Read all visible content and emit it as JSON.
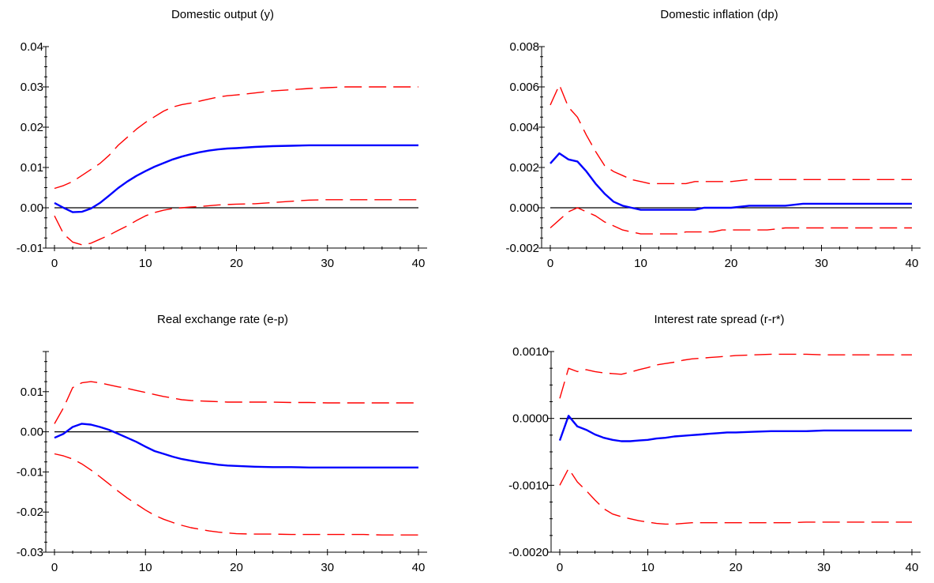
{
  "colors": {
    "irf": "#0000ff",
    "band": "#ff0000",
    "zero": "#000000",
    "axis": "#000000"
  },
  "chart_data": [
    {
      "type": "line",
      "title": "Domestic output (y)",
      "xlim": [
        0,
        40
      ],
      "ylim": [
        -0.01,
        0.04
      ],
      "xticks": [
        0,
        10,
        20,
        30,
        40
      ],
      "xtick_labels": [
        "0",
        "10",
        "20",
        "30",
        "40"
      ],
      "yticks": [
        -0.01,
        0,
        0.01,
        0.02,
        0.03,
        0.04
      ],
      "ytick_labels": [
        "-0.01",
        "0.00",
        "0.01",
        "0.02",
        "0.03",
        "0.04"
      ],
      "series": [
        {
          "style": "solid",
          "role": "irf",
          "x": [
            0,
            1,
            2,
            3,
            4,
            5,
            6,
            7,
            8,
            9,
            10,
            11,
            12,
            13,
            14,
            15,
            16,
            17,
            18,
            19,
            20,
            22,
            24,
            26,
            28,
            30,
            32,
            34,
            36,
            38,
            40
          ],
          "values": [
            0.0012,
            0.0,
            -0.0011,
            -0.001,
            -0.0002,
            0.0012,
            0.003,
            0.0049,
            0.0065,
            0.0079,
            0.0091,
            0.0102,
            0.0111,
            0.012,
            0.0127,
            0.0133,
            0.0138,
            0.0142,
            0.0145,
            0.0147,
            0.0148,
            0.0151,
            0.0153,
            0.0154,
            0.0155,
            0.0155,
            0.0155,
            0.0155,
            0.0155,
            0.0155,
            0.0155
          ]
        },
        {
          "style": "dashed",
          "role": "upper",
          "x": [
            0,
            1,
            2,
            3,
            4,
            5,
            6,
            7,
            8,
            9,
            10,
            11,
            12,
            13,
            14,
            15,
            16,
            17,
            18,
            19,
            20,
            22,
            24,
            26,
            28,
            30,
            32,
            34,
            36,
            38,
            40
          ],
          "values": [
            0.0048,
            0.0055,
            0.0065,
            0.008,
            0.0095,
            0.011,
            0.013,
            0.0155,
            0.0175,
            0.0195,
            0.0212,
            0.0226,
            0.024,
            0.025,
            0.0256,
            0.026,
            0.0265,
            0.027,
            0.0275,
            0.0278,
            0.028,
            0.0285,
            0.029,
            0.0293,
            0.0296,
            0.0298,
            0.03,
            0.03,
            0.03,
            0.03,
            0.03
          ]
        },
        {
          "style": "dashed",
          "role": "lower",
          "x": [
            0,
            1,
            2,
            3,
            4,
            5,
            6,
            7,
            8,
            9,
            10,
            11,
            12,
            13,
            14,
            15,
            16,
            17,
            18,
            19,
            20,
            22,
            24,
            26,
            28,
            30,
            32,
            34,
            36,
            38,
            40
          ],
          "values": [
            -0.002,
            -0.0065,
            -0.0085,
            -0.0092,
            -0.0088,
            -0.0078,
            -0.0068,
            -0.0056,
            -0.0045,
            -0.0032,
            -0.002,
            -0.0012,
            -0.0006,
            -0.0002,
            0.0,
            0.0002,
            0.0003,
            0.0005,
            0.0007,
            0.0008,
            0.0009,
            0.001,
            0.0013,
            0.0016,
            0.0019,
            0.002,
            0.002,
            0.002,
            0.002,
            0.002,
            0.002
          ]
        }
      ]
    },
    {
      "type": "line",
      "title": "Domestic inflation (dp)",
      "xlim": [
        0,
        40
      ],
      "ylim": [
        -0.002,
        0.008
      ],
      "xticks": [
        0,
        10,
        20,
        30,
        40
      ],
      "xtick_labels": [
        "0",
        "10",
        "20",
        "30",
        "40"
      ],
      "yticks": [
        -0.002,
        0,
        0.002,
        0.004,
        0.006,
        0.008
      ],
      "ytick_labels": [
        "-0.002",
        "0.000",
        "0.002",
        "0.004",
        "0.006",
        "0.008"
      ],
      "series": [
        {
          "style": "solid",
          "role": "irf",
          "x": [
            0,
            1,
            2,
            3,
            4,
            5,
            6,
            7,
            8,
            9,
            10,
            11,
            12,
            13,
            14,
            15,
            16,
            17,
            18,
            19,
            20,
            22,
            24,
            26,
            28,
            30,
            32,
            34,
            36,
            38,
            40
          ],
          "values": [
            0.0022,
            0.0027,
            0.0024,
            0.0023,
            0.0018,
            0.0012,
            0.0007,
            0.0003,
            0.0001,
            -0.0,
            -0.0001,
            -0.0001,
            -0.0001,
            -0.0001,
            -0.0001,
            -0.0001,
            -0.0001,
            -0.0,
            -0.0,
            0.0,
            0.0,
            0.0001,
            0.0001,
            0.0001,
            0.0002,
            0.0002,
            0.0002,
            0.0002,
            0.0002,
            0.0002,
            0.0002
          ]
        },
        {
          "style": "dashed",
          "role": "upper",
          "x": [
            0,
            1,
            2,
            3,
            4,
            5,
            6,
            7,
            8,
            9,
            10,
            11,
            12,
            13,
            14,
            15,
            16,
            17,
            18,
            19,
            20,
            22,
            24,
            26,
            28,
            30,
            32,
            34,
            36,
            38,
            40
          ],
          "values": [
            0.0051,
            0.0061,
            0.005,
            0.0045,
            0.0036,
            0.0028,
            0.0021,
            0.0018,
            0.0016,
            0.0014,
            0.0013,
            0.0012,
            0.0012,
            0.0012,
            0.0012,
            0.0012,
            0.0013,
            0.0013,
            0.0013,
            0.0013,
            0.0013,
            0.0014,
            0.0014,
            0.0014,
            0.0014,
            0.0014,
            0.0014,
            0.0014,
            0.0014,
            0.0014,
            0.0014
          ]
        },
        {
          "style": "dashed",
          "role": "lower",
          "x": [
            0,
            1,
            2,
            3,
            4,
            5,
            6,
            7,
            8,
            9,
            10,
            11,
            12,
            13,
            14,
            15,
            16,
            17,
            18,
            19,
            20,
            22,
            24,
            26,
            28,
            30,
            32,
            34,
            36,
            38,
            40
          ],
          "values": [
            -0.001,
            -0.0006,
            -0.0002,
            0.0,
            -0.0002,
            -0.0004,
            -0.0007,
            -0.0009,
            -0.0011,
            -0.0012,
            -0.0013,
            -0.0013,
            -0.0013,
            -0.0013,
            -0.0013,
            -0.0012,
            -0.0012,
            -0.0012,
            -0.0012,
            -0.0011,
            -0.0011,
            -0.0011,
            -0.0011,
            -0.001,
            -0.001,
            -0.001,
            -0.001,
            -0.001,
            -0.001,
            -0.001,
            -0.001
          ]
        }
      ]
    },
    {
      "type": "line",
      "title": "Real exchange rate (e-p)",
      "xlim": [
        0,
        40
      ],
      "ylim": [
        -0.03,
        0.02
      ],
      "xticks": [
        0,
        10,
        20,
        30,
        40
      ],
      "xtick_labels": [
        "0",
        "10",
        "20",
        "30",
        "40"
      ],
      "yticks": [
        -0.03,
        -0.02,
        -0.01,
        0,
        0.01,
        0.02
      ],
      "ytick_labels": [
        "-0.03",
        "-0.02",
        "-0.01",
        "0.00",
        "0.01",
        ""
      ],
      "series": [
        {
          "style": "solid",
          "role": "irf",
          "x": [
            0,
            1,
            2,
            3,
            4,
            5,
            6,
            7,
            8,
            9,
            10,
            11,
            12,
            13,
            14,
            15,
            16,
            17,
            18,
            19,
            20,
            22,
            24,
            26,
            28,
            30,
            32,
            34,
            36,
            38,
            40
          ],
          "values": [
            -0.0015,
            -0.0005,
            0.0012,
            0.002,
            0.0018,
            0.0012,
            0.0005,
            -0.0005,
            -0.0015,
            -0.0025,
            -0.0037,
            -0.0048,
            -0.0055,
            -0.0062,
            -0.0068,
            -0.0072,
            -0.0076,
            -0.0079,
            -0.0082,
            -0.0084,
            -0.0085,
            -0.0087,
            -0.0088,
            -0.0088,
            -0.0089,
            -0.0089,
            -0.0089,
            -0.0089,
            -0.0089,
            -0.0089,
            -0.0089
          ]
        },
        {
          "style": "dashed",
          "role": "upper",
          "x": [
            0,
            1,
            2,
            3,
            4,
            5,
            6,
            7,
            8,
            9,
            10,
            11,
            12,
            13,
            14,
            15,
            16,
            17,
            18,
            19,
            20,
            22,
            24,
            26,
            28,
            30,
            32,
            34,
            36,
            38,
            40
          ],
          "values": [
            0.002,
            0.006,
            0.011,
            0.0122,
            0.0125,
            0.0122,
            0.0117,
            0.0112,
            0.0108,
            0.0103,
            0.0098,
            0.0093,
            0.0088,
            0.0084,
            0.008,
            0.0078,
            0.0077,
            0.0076,
            0.0075,
            0.0074,
            0.0074,
            0.0074,
            0.0074,
            0.0073,
            0.0073,
            0.0072,
            0.0072,
            0.0072,
            0.0072,
            0.0072,
            0.0072
          ]
        },
        {
          "style": "dashed",
          "role": "lower",
          "x": [
            0,
            1,
            2,
            3,
            4,
            5,
            6,
            7,
            8,
            9,
            10,
            11,
            12,
            13,
            14,
            15,
            16,
            17,
            18,
            19,
            20,
            22,
            24,
            26,
            28,
            30,
            32,
            34,
            36,
            38,
            40
          ],
          "values": [
            -0.0055,
            -0.006,
            -0.0068,
            -0.008,
            -0.0095,
            -0.0112,
            -0.013,
            -0.0148,
            -0.0165,
            -0.018,
            -0.0195,
            -0.0208,
            -0.0218,
            -0.0226,
            -0.0233,
            -0.0239,
            -0.0243,
            -0.0247,
            -0.025,
            -0.0252,
            -0.0254,
            -0.0255,
            -0.0255,
            -0.0256,
            -0.0256,
            -0.0256,
            -0.0256,
            -0.0256,
            -0.0257,
            -0.0257,
            -0.0257
          ]
        }
      ]
    },
    {
      "type": "line",
      "title": "Interest rate spread (r-r*)",
      "xlim": [
        0,
        40
      ],
      "ylim": [
        -0.002,
        0.001
      ],
      "xticks": [
        0,
        10,
        20,
        30,
        40
      ],
      "xtick_labels": [
        "0",
        "10",
        "20",
        "30",
        "40"
      ],
      "yticks": [
        -0.002,
        -0.001,
        0,
        0.001
      ],
      "ytick_labels": [
        "-0.0020",
        "-0.0010",
        "0.0000",
        "0.0010"
      ],
      "series": [
        {
          "style": "solid",
          "role": "irf",
          "x": [
            0,
            1,
            2,
            3,
            4,
            5,
            6,
            7,
            8,
            9,
            10,
            11,
            12,
            13,
            14,
            15,
            16,
            17,
            18,
            19,
            20,
            22,
            24,
            26,
            28,
            30,
            32,
            34,
            36,
            38,
            40
          ],
          "values": [
            -0.00033,
            4e-05,
            -0.00012,
            -0.00017,
            -0.00024,
            -0.00029,
            -0.00032,
            -0.00034,
            -0.00034,
            -0.00033,
            -0.00032,
            -0.0003,
            -0.00029,
            -0.00027,
            -0.00026,
            -0.00025,
            -0.00024,
            -0.00023,
            -0.00022,
            -0.00021,
            -0.00021,
            -0.0002,
            -0.00019,
            -0.00019,
            -0.00019,
            -0.00018,
            -0.00018,
            -0.00018,
            -0.00018,
            -0.00018,
            -0.00018
          ]
        },
        {
          "style": "dashed",
          "role": "upper",
          "x": [
            0,
            1,
            2,
            3,
            4,
            5,
            6,
            7,
            8,
            9,
            10,
            11,
            12,
            13,
            14,
            15,
            16,
            17,
            18,
            19,
            20,
            22,
            24,
            26,
            28,
            30,
            32,
            34,
            36,
            38,
            40
          ],
          "values": [
            0.0003,
            0.00075,
            0.0007,
            0.00073,
            0.0007,
            0.00068,
            0.00067,
            0.00066,
            0.00069,
            0.00073,
            0.00076,
            0.0008,
            0.00082,
            0.00084,
            0.00087,
            0.00089,
            0.0009,
            0.00091,
            0.00092,
            0.00093,
            0.00094,
            0.00095,
            0.00096,
            0.00096,
            0.00096,
            0.00095,
            0.00095,
            0.00095,
            0.00095,
            0.00095,
            0.00095
          ]
        },
        {
          "style": "dashed",
          "role": "lower",
          "x": [
            0,
            1,
            2,
            3,
            4,
            5,
            6,
            7,
            8,
            9,
            10,
            11,
            12,
            13,
            14,
            15,
            16,
            17,
            18,
            19,
            20,
            22,
            24,
            26,
            28,
            30,
            32,
            34,
            36,
            38,
            40
          ],
          "values": [
            -0.001,
            -0.00075,
            -0.00095,
            -0.00108,
            -0.00122,
            -0.00135,
            -0.00143,
            -0.00147,
            -0.0015,
            -0.00153,
            -0.00155,
            -0.00157,
            -0.00158,
            -0.00158,
            -0.00157,
            -0.00156,
            -0.00156,
            -0.00156,
            -0.00156,
            -0.00156,
            -0.00156,
            -0.00156,
            -0.00156,
            -0.00156,
            -0.00155,
            -0.00155,
            -0.00155,
            -0.00155,
            -0.00155,
            -0.00155,
            -0.00155
          ]
        }
      ]
    }
  ]
}
